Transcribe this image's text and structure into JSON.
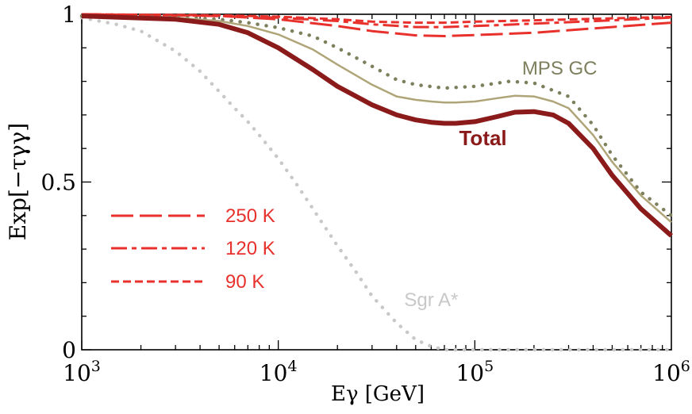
{
  "chart_data": {
    "type": "line",
    "xscale": "log",
    "xlim": [
      1000,
      1000000
    ],
    "ylim": [
      0,
      1
    ],
    "ylabel": "Exp[−τγγ]",
    "xlabel": "Eγ [GeV]",
    "xticks": [
      {
        "value": 1000,
        "base": "10",
        "exp": "3"
      },
      {
        "value": 10000,
        "base": "10",
        "exp": "4"
      },
      {
        "value": 100000,
        "base": "10",
        "exp": "5"
      },
      {
        "value": 1000000,
        "base": "10",
        "exp": "6"
      }
    ],
    "yticks": [
      {
        "value": 0,
        "label": "0"
      },
      {
        "value": 0.5,
        "label": "0.5"
      },
      {
        "value": 1,
        "label": "1"
      }
    ],
    "series": [
      {
        "id": "sgr",
        "name": "Sgr A*",
        "color": "#c8c8c8",
        "style": "dotted",
        "x": [
          1000,
          1500,
          2000,
          3000,
          4000,
          5000,
          6000,
          7000,
          8000,
          10000,
          12500,
          15000,
          20000,
          25000,
          30000,
          40000,
          50000,
          60000,
          70000,
          80000,
          100000,
          1000000
        ],
        "y": [
          0.99,
          0.97,
          0.95,
          0.89,
          0.83,
          0.77,
          0.72,
          0.68,
          0.64,
          0.57,
          0.49,
          0.42,
          0.31,
          0.23,
          0.16,
          0.08,
          0.03,
          0.01,
          0.0,
          0.0,
          0.0,
          0.0
        ]
      },
      {
        "id": "mps-dotted",
        "name": "MPS GC",
        "color": "#7d7f5d",
        "style": "dotted",
        "x": [
          1000,
          3000,
          5000,
          7000,
          10000,
          15000,
          20000,
          30000,
          40000,
          50000,
          70000,
          100000,
          150000,
          200000,
          300000,
          400000,
          500000,
          700000,
          1000000
        ],
        "y": [
          0.995,
          0.99,
          0.985,
          0.975,
          0.96,
          0.935,
          0.9,
          0.845,
          0.805,
          0.79,
          0.78,
          0.785,
          0.8,
          0.795,
          0.755,
          0.67,
          0.58,
          0.47,
          0.4
        ]
      },
      {
        "id": "mps-solid",
        "name": "",
        "color": "#b0a578",
        "style": "solid",
        "x": [
          1000,
          3000,
          5000,
          7000,
          10000,
          15000,
          20000,
          30000,
          40000,
          50000,
          60000,
          70000,
          80000,
          100000,
          130000,
          160000,
          200000,
          250000,
          300000,
          400000,
          500000,
          700000,
          1000000
        ],
        "y": [
          0.995,
          0.99,
          0.98,
          0.965,
          0.94,
          0.895,
          0.85,
          0.79,
          0.755,
          0.745,
          0.74,
          0.737,
          0.737,
          0.74,
          0.75,
          0.757,
          0.755,
          0.74,
          0.72,
          0.64,
          0.56,
          0.46,
          0.38
        ]
      },
      {
        "id": "total",
        "name": "Total",
        "color": "#8b1a1a",
        "style": "solid",
        "x": [
          1000,
          3000,
          5000,
          7000,
          10000,
          15000,
          20000,
          30000,
          40000,
          50000,
          60000,
          70000,
          80000,
          100000,
          130000,
          160000,
          200000,
          250000,
          300000,
          400000,
          500000,
          700000,
          1000000
        ],
        "y": [
          0.995,
          0.985,
          0.97,
          0.945,
          0.9,
          0.835,
          0.785,
          0.73,
          0.7,
          0.685,
          0.678,
          0.675,
          0.675,
          0.68,
          0.695,
          0.708,
          0.71,
          0.7,
          0.675,
          0.6,
          0.52,
          0.42,
          0.34
        ]
      },
      {
        "id": "k250",
        "name": "250 K",
        "color": "#e8312c",
        "style": "long-dash",
        "x": [
          1000,
          5000,
          10000,
          20000,
          30000,
          50000,
          70000,
          100000,
          200000,
          500000,
          1000000
        ],
        "y": [
          1.0,
          0.995,
          0.985,
          0.965,
          0.95,
          0.937,
          0.935,
          0.938,
          0.945,
          0.962,
          0.975
        ]
      },
      {
        "id": "k120",
        "name": "120 K",
        "color": "#e8312c",
        "style": "dash-dot",
        "x": [
          1000,
          5000,
          10000,
          20000,
          30000,
          50000,
          70000,
          100000,
          200000,
          500000,
          1000000
        ],
        "y": [
          1.0,
          0.995,
          0.99,
          0.98,
          0.97,
          0.962,
          0.962,
          0.965,
          0.972,
          0.982,
          0.99
        ]
      },
      {
        "id": "k90",
        "name": "90 K",
        "color": "#e8312c",
        "style": "short-dash",
        "x": [
          1000,
          5000,
          10000,
          20000,
          30000,
          50000,
          70000,
          100000,
          200000,
          500000,
          1000000
        ],
        "y": [
          1.0,
          0.997,
          0.993,
          0.985,
          0.978,
          0.975,
          0.975,
          0.978,
          0.982,
          0.988,
          0.992
        ]
      }
    ],
    "annotations": [
      {
        "id": "total",
        "text": "Total",
        "color": "#8b1a1a",
        "x": 110000,
        "y": 0.61
      },
      {
        "id": "mps",
        "text": "MPS GC",
        "color": "#7d7f5d",
        "x": 270000,
        "y": 0.82
      },
      {
        "id": "sgr",
        "text": "Sgr A*",
        "color": "#c8c8c8",
        "x": 60000,
        "y": 0.13
      }
    ],
    "legend": {
      "placement": "lower-left",
      "entries": [
        {
          "series": "k250",
          "label": "250 K"
        },
        {
          "series": "k120",
          "label": "120 K"
        },
        {
          "series": "k90",
          "label": "90 K"
        }
      ]
    }
  }
}
